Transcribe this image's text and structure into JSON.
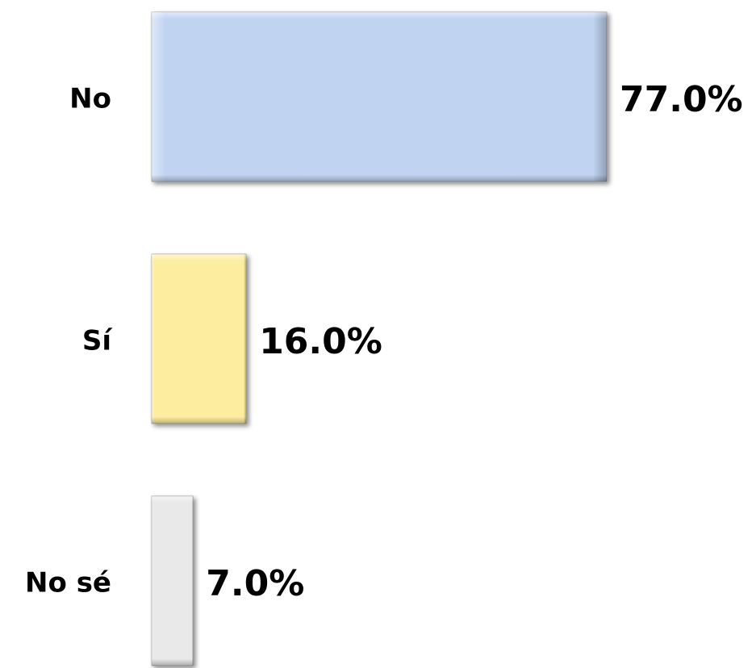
{
  "chart_data": {
    "type": "bar",
    "orientation": "horizontal",
    "categories": [
      "No",
      "Sí",
      "No sé"
    ],
    "values": [
      77.0,
      16.0,
      7.0
    ],
    "value_labels": [
      "77.0%",
      "16.0%",
      "7.0%"
    ],
    "colors": [
      "#c0d4f2",
      "#fcee9e",
      "#e9e9e9"
    ]
  }
}
